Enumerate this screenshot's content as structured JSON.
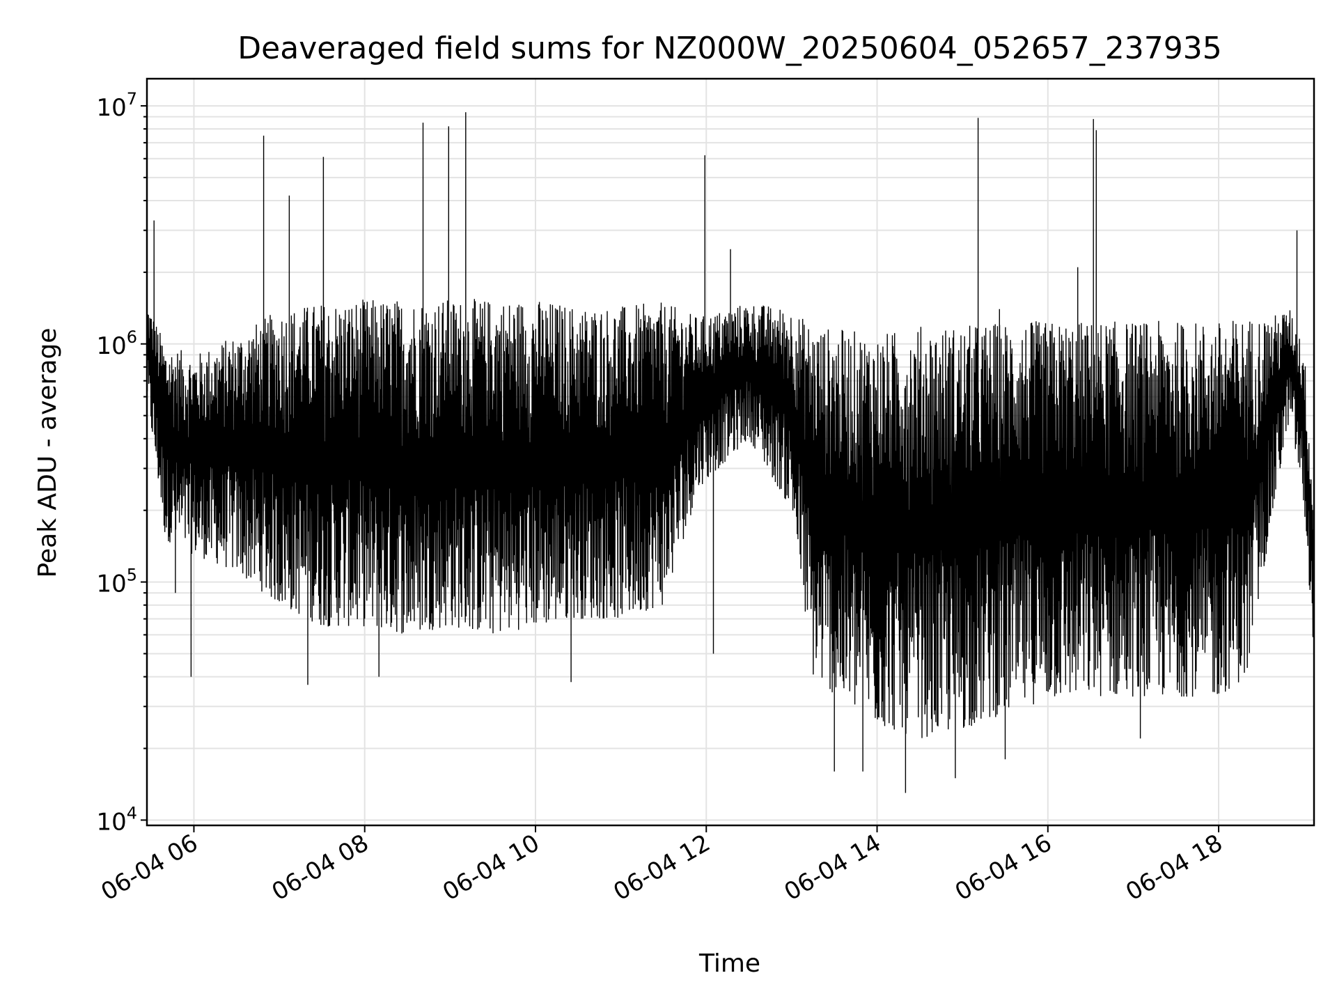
{
  "chart_data": {
    "type": "line",
    "title": "Deaveraged field sums for NZ000W_20250604_052657_237935",
    "xlabel": "Time",
    "ylabel": "Peak ADU - average",
    "yscale": "log",
    "xlim": [
      "2025-06-04 05:27",
      "2025-06-04 19:07"
    ],
    "ylim": [
      9500,
      13000000
    ],
    "grid": "on (major and minor)",
    "legend": "none",
    "line_color": "#000000",
    "x_ticks": [
      {
        "t": "2025-06-04 06:00",
        "label": "06-04 06"
      },
      {
        "t": "2025-06-04 08:00",
        "label": "06-04 08"
      },
      {
        "t": "2025-06-04 10:00",
        "label": "06-04 10"
      },
      {
        "t": "2025-06-04 12:00",
        "label": "06-04 12"
      },
      {
        "t": "2025-06-04 14:00",
        "label": "06-04 14"
      },
      {
        "t": "2025-06-04 16:00",
        "label": "06-04 16"
      },
      {
        "t": "2025-06-04 18:00",
        "label": "06-04 18"
      }
    ],
    "y_ticks": [
      {
        "value": 10000,
        "base": "10",
        "exp": "4"
      },
      {
        "value": 100000,
        "base": "10",
        "exp": "5"
      },
      {
        "value": 1000000,
        "base": "10",
        "exp": "6"
      },
      {
        "value": 10000000,
        "base": "10",
        "exp": "7"
      }
    ],
    "envelope": [
      {
        "t": "2025-06-04 05:27",
        "low": 600000,
        "high": 1500000
      },
      {
        "t": "2025-06-04 05:40",
        "low": 150000,
        "high": 1000000
      },
      {
        "t": "2025-06-04 06:00",
        "low": 130000,
        "high": 900000
      },
      {
        "t": "2025-06-04 06:30",
        "low": 110000,
        "high": 1100000
      },
      {
        "t": "2025-06-04 07:00",
        "low": 80000,
        "high": 1400000
      },
      {
        "t": "2025-06-04 07:30",
        "low": 65000,
        "high": 1500000
      },
      {
        "t": "2025-06-04 08:00",
        "low": 65000,
        "high": 1550000
      },
      {
        "t": "2025-06-04 08:30",
        "low": 60000,
        "high": 1550000
      },
      {
        "t": "2025-06-04 09:00",
        "low": 65000,
        "high": 1550000
      },
      {
        "t": "2025-06-04 09:30",
        "low": 60000,
        "high": 1550000
      },
      {
        "t": "2025-06-04 10:00",
        "low": 65000,
        "high": 1550000
      },
      {
        "t": "2025-06-04 10:30",
        "low": 70000,
        "high": 1450000
      },
      {
        "t": "2025-06-04 11:00",
        "low": 70000,
        "high": 1450000
      },
      {
        "t": "2025-06-04 11:30",
        "low": 80000,
        "high": 1500000
      },
      {
        "t": "2025-06-04 11:55",
        "low": 250000,
        "high": 1300000
      },
      {
        "t": "2025-06-04 12:30",
        "low": 400000,
        "high": 1500000
      },
      {
        "t": "2025-06-04 13:00",
        "low": 200000,
        "high": 1400000
      },
      {
        "t": "2025-06-04 13:15",
        "low": 40000,
        "high": 1200000
      },
      {
        "t": "2025-06-04 13:40",
        "low": 30000,
        "high": 1150000
      },
      {
        "t": "2025-06-04 14:00",
        "low": 25000,
        "high": 1100000
      },
      {
        "t": "2025-06-04 14:30",
        "low": 22000,
        "high": 1200000
      },
      {
        "t": "2025-06-04 15:00",
        "low": 24000,
        "high": 1200000
      },
      {
        "t": "2025-06-04 15:30",
        "low": 28000,
        "high": 1250000
      },
      {
        "t": "2025-06-04 16:00",
        "low": 32000,
        "high": 1250000
      },
      {
        "t": "2025-06-04 16:30",
        "low": 33000,
        "high": 1250000
      },
      {
        "t": "2025-06-04 17:00",
        "low": 33000,
        "high": 1250000
      },
      {
        "t": "2025-06-04 17:30",
        "low": 33000,
        "high": 1250000
      },
      {
        "t": "2025-06-04 18:00",
        "low": 33000,
        "high": 1250000
      },
      {
        "t": "2025-06-04 18:20",
        "low": 40000,
        "high": 1300000
      },
      {
        "t": "2025-06-04 18:35",
        "low": 150000,
        "high": 1300000
      },
      {
        "t": "2025-06-04 18:50",
        "low": 500000,
        "high": 1400000
      },
      {
        "t": "2025-06-04 19:00",
        "low": 200000,
        "high": 1000000
      },
      {
        "t": "2025-06-04 19:07",
        "low": 50000,
        "high": 200000
      }
    ],
    "spikes": [
      {
        "t": "2025-06-04 05:32",
        "value": 3300000
      },
      {
        "t": "2025-06-04 06:49",
        "value": 7500000
      },
      {
        "t": "2025-06-04 07:07",
        "value": 4200000
      },
      {
        "t": "2025-06-04 07:31",
        "value": 6100000
      },
      {
        "t": "2025-06-04 08:41",
        "value": 8500000
      },
      {
        "t": "2025-06-04 08:59",
        "value": 8200000
      },
      {
        "t": "2025-06-04 09:11",
        "value": 9400000
      },
      {
        "t": "2025-06-04 11:59",
        "value": 6200000
      },
      {
        "t": "2025-06-04 12:17",
        "value": 2500000
      },
      {
        "t": "2025-06-04 15:11",
        "value": 8900000
      },
      {
        "t": "2025-06-04 15:26",
        "value": 1400000
      },
      {
        "t": "2025-06-04 16:21",
        "value": 2100000
      },
      {
        "t": "2025-06-04 16:32",
        "value": 8800000
      },
      {
        "t": "2025-06-04 16:34",
        "value": 7900000
      },
      {
        "t": "2025-06-04 18:55",
        "value": 3000000
      }
    ],
    "dips": [
      {
        "t": "2025-06-04 05:47",
        "value": 90000
      },
      {
        "t": "2025-06-04 05:58",
        "value": 40000
      },
      {
        "t": "2025-06-04 07:20",
        "value": 37000
      },
      {
        "t": "2025-06-04 08:10",
        "value": 40000
      },
      {
        "t": "2025-06-04 10:25",
        "value": 38000
      },
      {
        "t": "2025-06-04 12:05",
        "value": 50000
      },
      {
        "t": "2025-06-04 13:30",
        "value": 16000
      },
      {
        "t": "2025-06-04 13:50",
        "value": 16000
      },
      {
        "t": "2025-06-04 14:20",
        "value": 13000
      },
      {
        "t": "2025-06-04 14:55",
        "value": 15000
      },
      {
        "t": "2025-06-04 15:30",
        "value": 18000
      },
      {
        "t": "2025-06-04 17:05",
        "value": 22000
      }
    ]
  }
}
